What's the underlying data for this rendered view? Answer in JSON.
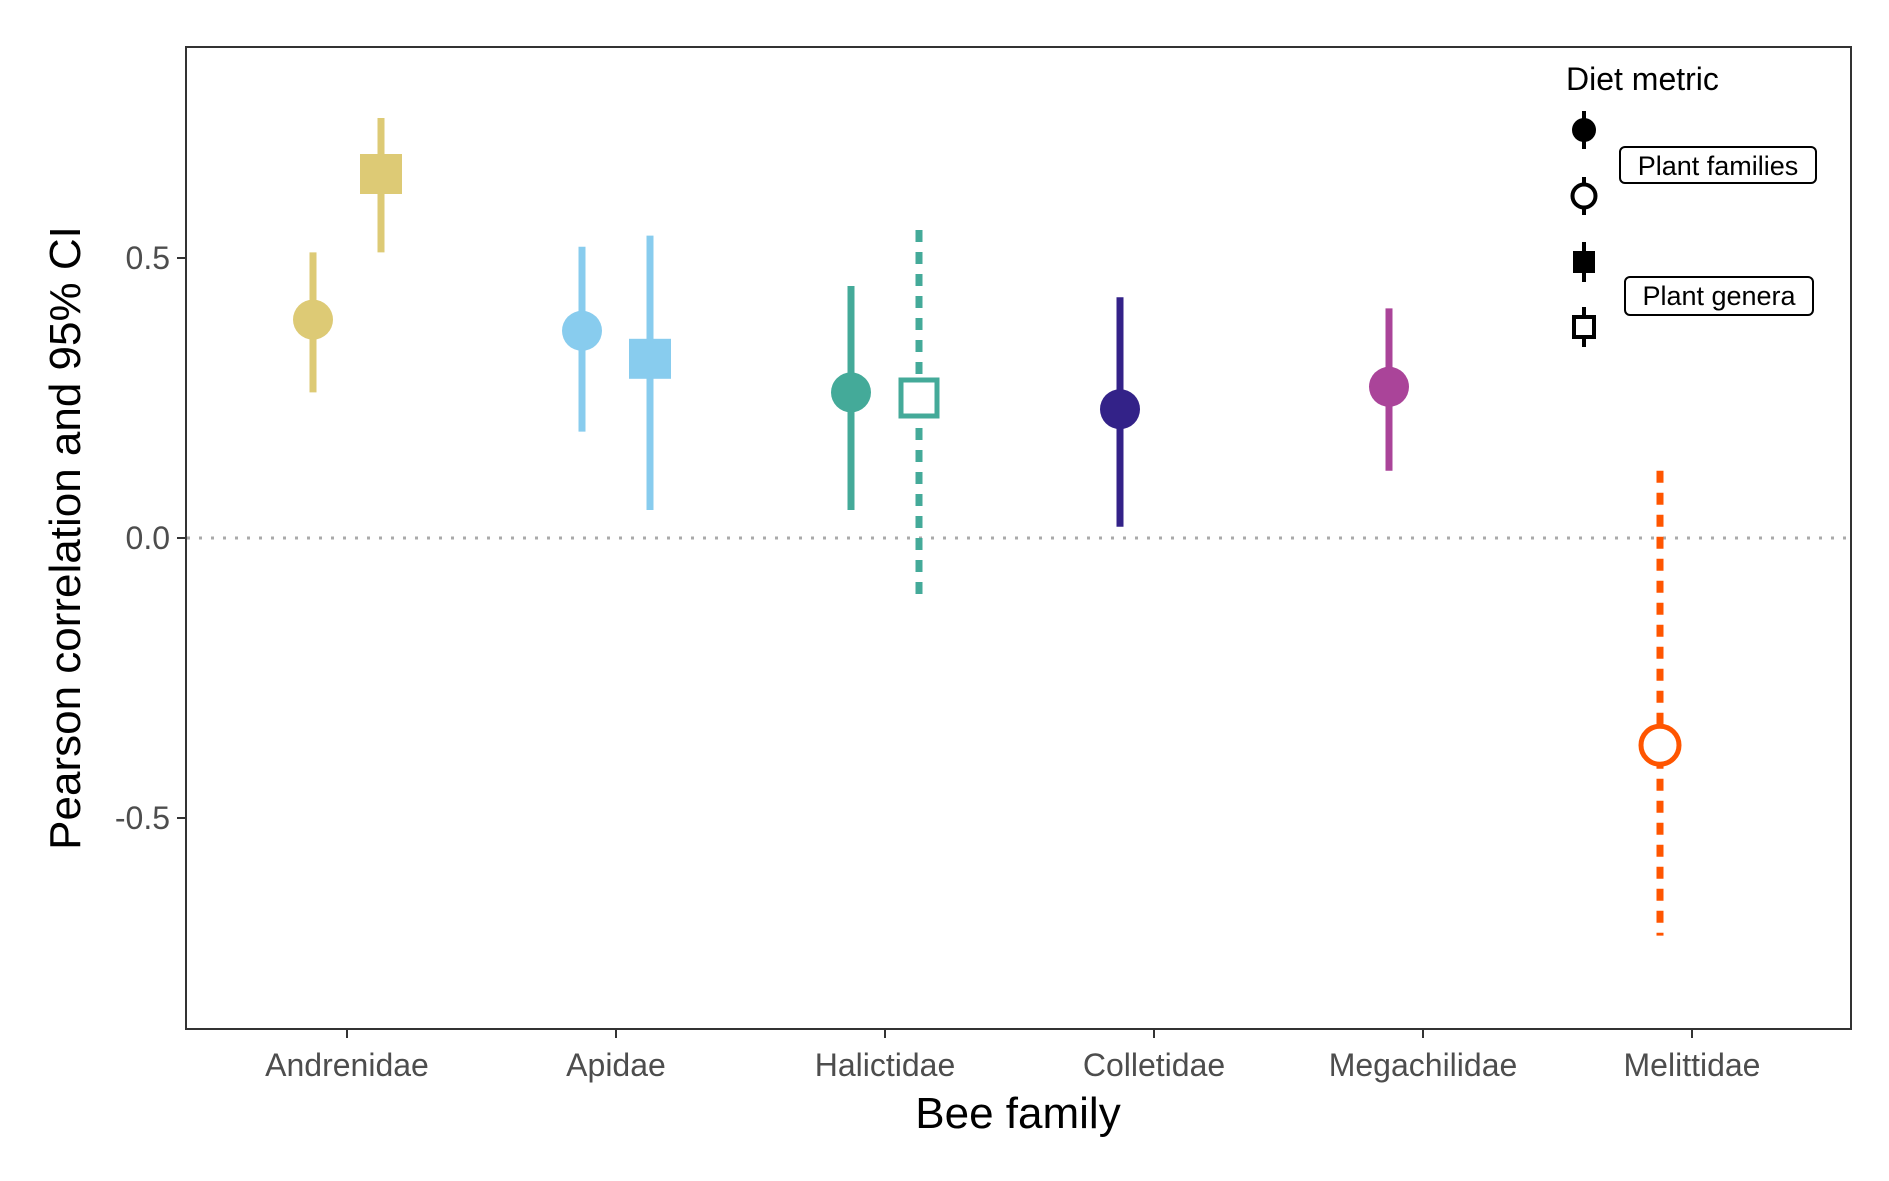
{
  "chart_data": {
    "type": "scatter",
    "subtype": "point-range (estimate with 95% CI)",
    "xlabel": "Bee family",
    "ylabel": "Pearson correlation and 95% CI",
    "categories": [
      "Andrenidae",
      "Apidae",
      "Halictidae",
      "Colletidae",
      "Megachilidae",
      "Melittidae"
    ],
    "y_ticks": [
      "0.5",
      "0.0",
      "-0.5"
    ],
    "y_tick_values": [
      0.5,
      0.0,
      -0.5
    ],
    "ylim": [
      -0.88,
      0.88
    ],
    "reference_line": {
      "y": 0,
      "style": "dotted",
      "color": "#aaaaaa"
    },
    "grid": false,
    "legend": {
      "title": "Diet metric",
      "placement": "top-right",
      "entries": [
        {
          "label": "Plant families",
          "markers": [
            "filled-circle",
            "open-circle"
          ]
        },
        {
          "label": "Plant genera",
          "markers": [
            "filled-square",
            "open-square"
          ]
        }
      ]
    },
    "series": [
      {
        "metric": "Plant families",
        "marker": "circle",
        "points": [
          {
            "category": "Andrenidae",
            "estimate": 0.39,
            "lower": 0.26,
            "upper": 0.51,
            "filled": true,
            "color": "#ddca75"
          },
          {
            "category": "Apidae",
            "estimate": 0.37,
            "lower": 0.19,
            "upper": 0.52,
            "filled": true,
            "color": "#88ccee"
          },
          {
            "category": "Halictidae",
            "estimate": 0.26,
            "lower": 0.05,
            "upper": 0.45,
            "filled": true,
            "color": "#44aa99"
          },
          {
            "category": "Colletidae",
            "estimate": 0.23,
            "lower": 0.02,
            "upper": 0.43,
            "filled": true,
            "color": "#332288"
          },
          {
            "category": "Megachilidae",
            "estimate": 0.27,
            "lower": 0.12,
            "upper": 0.41,
            "filled": true,
            "color": "#aa4499"
          },
          {
            "category": "Melittidae",
            "estimate": -0.37,
            "lower": -0.71,
            "upper": 0.12,
            "filled": false,
            "color": "#ff5500"
          }
        ]
      },
      {
        "metric": "Plant genera",
        "marker": "square",
        "points": [
          {
            "category": "Andrenidae",
            "estimate": 0.65,
            "lower": 0.51,
            "upper": 0.75,
            "filled": true,
            "color": "#ddca75"
          },
          {
            "category": "Apidae",
            "estimate": 0.32,
            "lower": 0.05,
            "upper": 0.54,
            "filled": true,
            "color": "#88ccee"
          },
          {
            "category": "Halictidae",
            "estimate": 0.25,
            "lower": -0.1,
            "upper": 0.55,
            "filled": false,
            "color": "#44aa99"
          }
        ]
      }
    ]
  }
}
